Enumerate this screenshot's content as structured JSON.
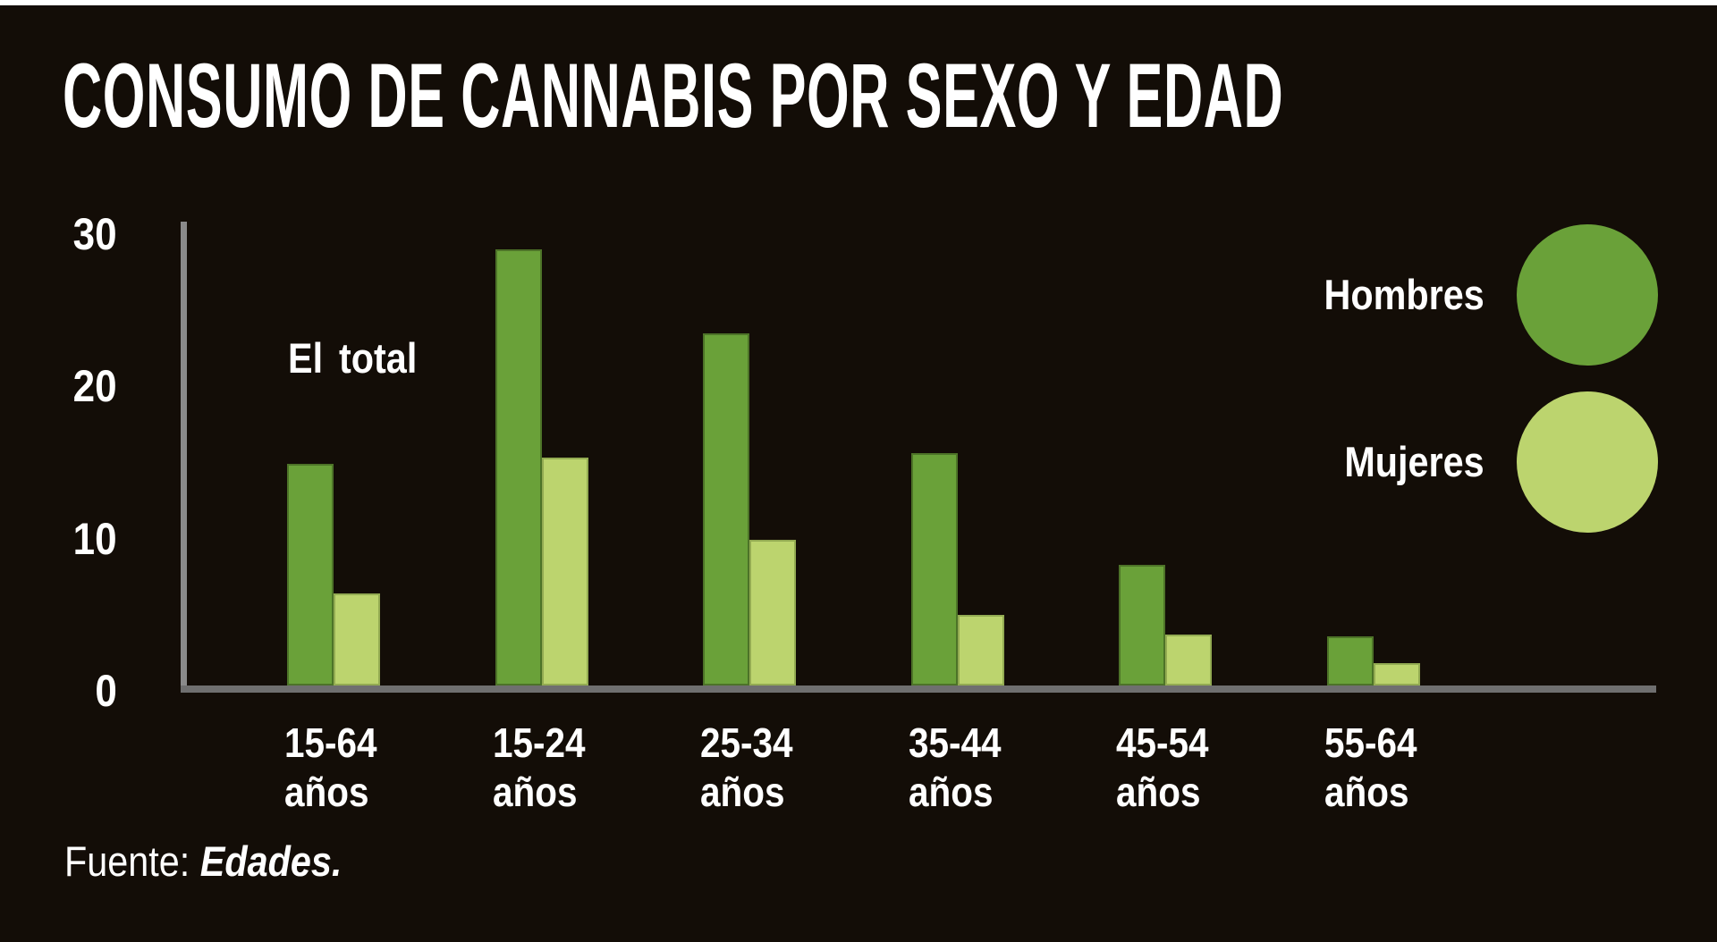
{
  "title": "CONSUMO DE CANNABIS POR SEXO Y EDAD",
  "annotation": {
    "line1": "El",
    "line2": "total"
  },
  "legend": [
    {
      "label": "Hombres",
      "color": "#6aa139"
    },
    {
      "label": "Mujeres",
      "color": "#bcd46e"
    }
  ],
  "source": {
    "prefix": "Fuente: ",
    "name": "Edades."
  },
  "colors": {
    "background": "#130d07",
    "text": "#ffffff",
    "y_axis": "#8a8a8a",
    "x_axis": "#6f6f6f",
    "hombres": "#6aa139",
    "hombres_edge": "#4d7328",
    "mujeres": "#bcd46e",
    "mujeres_edge": "#93ab52"
  },
  "chart_data": {
    "type": "bar",
    "title": "CONSUMO DE CANNABIS POR SEXO Y EDAD",
    "categories": [
      "15-64 años",
      "15-24 años",
      "25-34 años",
      "35-44 años",
      "45-54 años",
      "55-64 años"
    ],
    "series": [
      {
        "name": "Hombres",
        "color": "#6aa139",
        "edge": "#4d7328",
        "values": [
          14.9,
          29.0,
          23.5,
          15.6,
          8.3,
          3.6
        ]
      },
      {
        "name": "Mujeres",
        "color": "#bcd46e",
        "edge": "#93ab52",
        "values": [
          6.4,
          15.3,
          9.9,
          5.0,
          3.7,
          1.8
        ]
      }
    ],
    "xlabel": "",
    "ylabel": "",
    "ylim": [
      0,
      30
    ],
    "yticks": [
      0,
      10,
      20,
      30
    ],
    "grid": false,
    "legend_position": "right",
    "annotation": "El total",
    "source": "Fuente: Edades."
  }
}
